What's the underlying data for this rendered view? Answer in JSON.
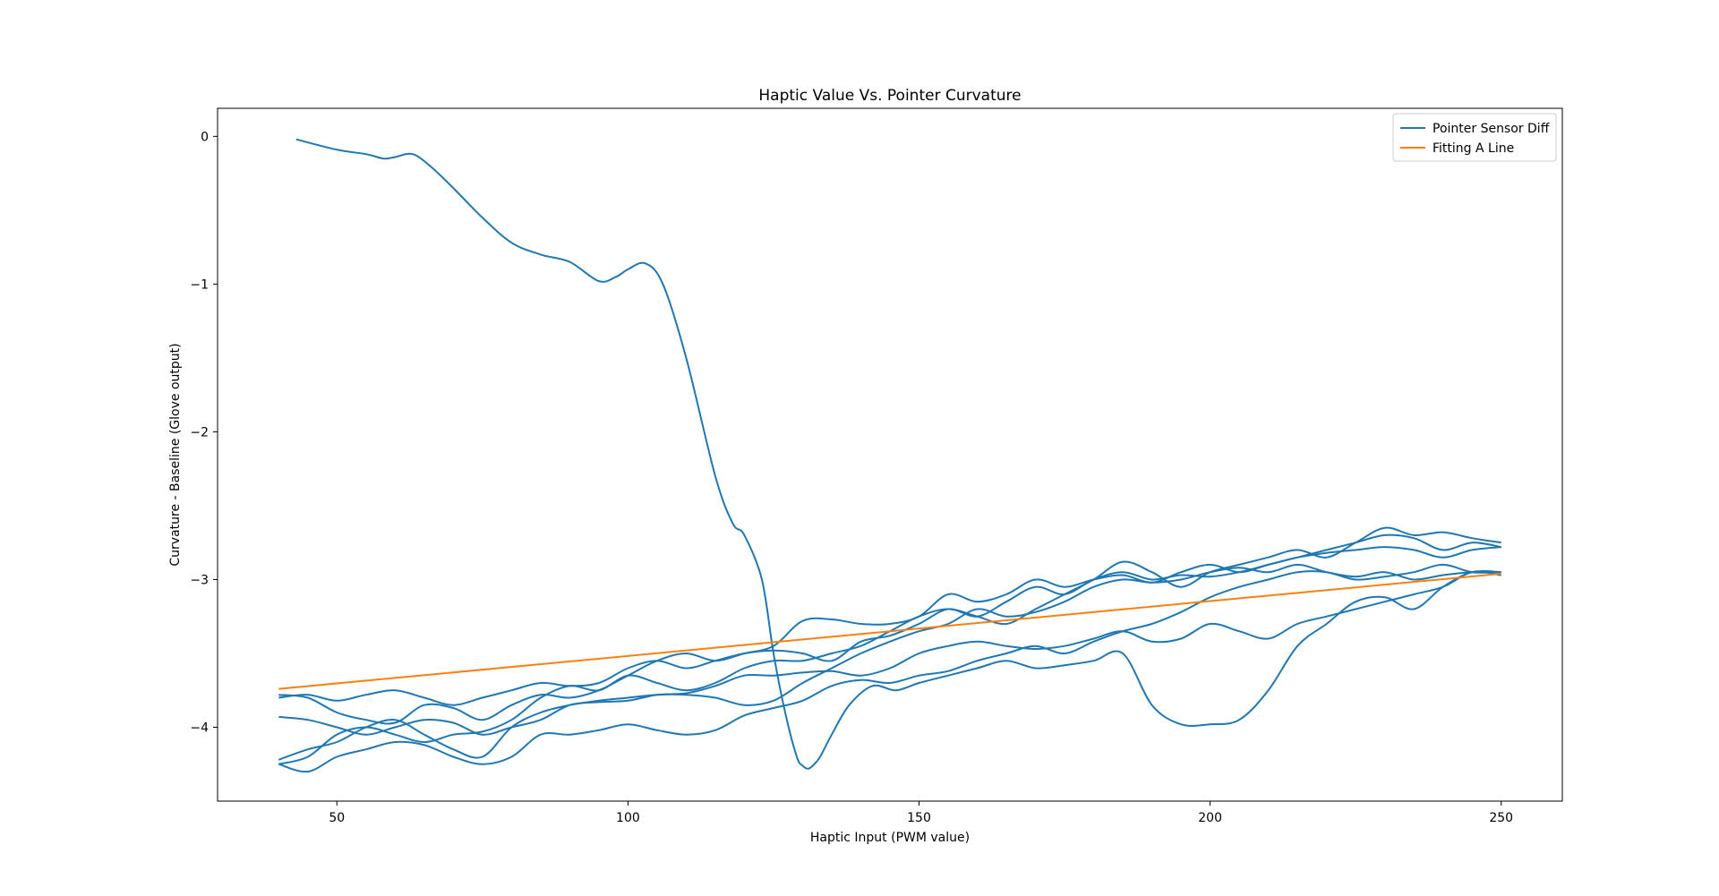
{
  "chart_data": {
    "type": "line",
    "title": "Haptic Value Vs. Pointer Curvature",
    "xlabel": "Haptic Input (PWM value)",
    "ylabel": "Curvature - Baseline (Glove output)",
    "xlim": [
      29.5,
      260.5
    ],
    "ylim": [
      -4.5,
      0.19
    ],
    "xticks": [
      50,
      100,
      150,
      200,
      250
    ],
    "xtick_labels": [
      "50",
      "100",
      "150",
      "200",
      "250"
    ],
    "yticks": [
      0,
      -1,
      -2,
      -3,
      -4
    ],
    "ytick_labels": [
      "0",
      "−1",
      "−2",
      "−3",
      "−4"
    ],
    "grid": false,
    "legend_position": "top-right",
    "legend": [
      {
        "label": "Pointer Sensor Diff",
        "color": "#1f77b4"
      },
      {
        "label": "Fitting A Line",
        "color": "#ff7f0e"
      }
    ],
    "series": [
      {
        "group": 0,
        "color": "#1f77b4",
        "x": [
          43,
          50,
          55,
          58,
          60,
          63,
          66,
          70,
          75,
          80,
          85,
          90,
          95,
          98,
          100,
          103,
          106,
          110,
          115,
          118,
          120,
          123,
          125,
          127,
          129,
          130,
          131,
          132,
          133,
          135,
          138,
          142,
          146,
          150,
          155,
          160,
          165,
          170,
          175,
          180,
          185,
          190,
          195,
          200,
          205,
          210,
          215,
          220,
          225,
          230,
          235,
          240,
          245,
          250
        ],
        "y": [
          -0.02,
          -0.09,
          -0.12,
          -0.15,
          -0.14,
          -0.12,
          -0.2,
          -0.35,
          -0.55,
          -0.72,
          -0.8,
          -0.85,
          -0.98,
          -0.95,
          -0.9,
          -0.86,
          -1.0,
          -1.5,
          -2.3,
          -2.62,
          -2.7,
          -3.0,
          -3.5,
          -3.9,
          -4.2,
          -4.26,
          -4.28,
          -4.25,
          -4.2,
          -4.05,
          -3.85,
          -3.72,
          -3.75,
          -3.7,
          -3.65,
          -3.6,
          -3.55,
          -3.6,
          -3.58,
          -3.55,
          -3.5,
          -3.85,
          -3.98,
          -3.98,
          -3.95,
          -3.75,
          -3.45,
          -3.3,
          -3.15,
          -3.12,
          -3.2,
          -3.05,
          -2.95,
          -2.95
        ]
      },
      {
        "group": 0,
        "color": "#1f77b4",
        "x": [
          40,
          45,
          50,
          55,
          60,
          65,
          70,
          75,
          80,
          85,
          90,
          95,
          100,
          105,
          110,
          115,
          120,
          125,
          130,
          135,
          140,
          145,
          150,
          155,
          160,
          165,
          170,
          175,
          180,
          185,
          190,
          195,
          200,
          205,
          210,
          215,
          220,
          225,
          230,
          235,
          240,
          245,
          250
        ],
        "y": [
          -3.78,
          -3.8,
          -3.9,
          -3.95,
          -3.97,
          -3.85,
          -3.87,
          -3.95,
          -3.85,
          -3.78,
          -3.8,
          -3.75,
          -3.65,
          -3.55,
          -3.5,
          -3.55,
          -3.5,
          -3.45,
          -3.28,
          -3.27,
          -3.3,
          -3.3,
          -3.25,
          -3.1,
          -3.15,
          -3.1,
          -3.0,
          -3.05,
          -3.0,
          -2.97,
          -3.02,
          -2.95,
          -2.9,
          -2.95,
          -2.9,
          -2.85,
          -2.8,
          -2.75,
          -2.7,
          -2.72,
          -2.8,
          -2.75,
          -2.78
        ]
      },
      {
        "group": 0,
        "color": "#1f77b4",
        "x": [
          40,
          45,
          50,
          55,
          60,
          65,
          70,
          75,
          80,
          85,
          90,
          95,
          100,
          105,
          110,
          115,
          120,
          125,
          130,
          135,
          140,
          145,
          150,
          155,
          160,
          165,
          170,
          175,
          180,
          185,
          190,
          195,
          200,
          205,
          210,
          215,
          220,
          225,
          230,
          235,
          240,
          245,
          250
        ],
        "y": [
          -3.8,
          -3.78,
          -3.82,
          -3.78,
          -3.75,
          -3.8,
          -3.85,
          -3.8,
          -3.75,
          -3.7,
          -3.72,
          -3.7,
          -3.6,
          -3.55,
          -3.6,
          -3.55,
          -3.5,
          -3.48,
          -3.5,
          -3.55,
          -3.42,
          -3.38,
          -3.3,
          -3.2,
          -3.25,
          -3.15,
          -3.05,
          -3.1,
          -3.0,
          -2.95,
          -3.0,
          -2.97,
          -2.98,
          -2.95,
          -2.9,
          -2.85,
          -2.82,
          -2.8,
          -2.78,
          -2.8,
          -2.85,
          -2.8,
          -2.78
        ]
      },
      {
        "group": 0,
        "color": "#1f77b4",
        "x": [
          40,
          45,
          50,
          55,
          60,
          65,
          70,
          75,
          80,
          85,
          90,
          95,
          100,
          105,
          110,
          115,
          120,
          125,
          130,
          135,
          140,
          145,
          150,
          155,
          160,
          165,
          170,
          175,
          180,
          185,
          190,
          195,
          200,
          205,
          210,
          215,
          220,
          225,
          230,
          235,
          240,
          245,
          250
        ],
        "y": [
          -4.25,
          -4.2,
          -4.05,
          -4.0,
          -4.05,
          -4.1,
          -4.05,
          -4.03,
          -3.95,
          -3.8,
          -3.72,
          -3.75,
          -3.65,
          -3.7,
          -3.75,
          -3.7,
          -3.6,
          -3.55,
          -3.55,
          -3.5,
          -3.45,
          -3.35,
          -3.25,
          -3.2,
          -3.25,
          -3.3,
          -3.2,
          -3.1,
          -3.0,
          -2.88,
          -2.95,
          -3.05,
          -2.95,
          -2.9,
          -2.85,
          -2.8,
          -2.85,
          -2.75,
          -2.65,
          -2.7,
          -2.68,
          -2.72,
          -2.75
        ]
      },
      {
        "group": 0,
        "color": "#1f77b4",
        "x": [
          40,
          45,
          50,
          55,
          60,
          65,
          70,
          75,
          80,
          85,
          90,
          95,
          100,
          105,
          110,
          115,
          120,
          125,
          130,
          135,
          140,
          145,
          150,
          155,
          160,
          165,
          170,
          175,
          180,
          185,
          190,
          195,
          200,
          205,
          210,
          215,
          220,
          225,
          230,
          235,
          240,
          245,
          250
        ],
        "y": [
          -4.22,
          -4.15,
          -4.1,
          -4.0,
          -3.95,
          -4.05,
          -4.15,
          -4.2,
          -4.0,
          -3.9,
          -3.85,
          -3.82,
          -3.8,
          -3.78,
          -3.78,
          -3.8,
          -3.85,
          -3.82,
          -3.7,
          -3.6,
          -3.5,
          -3.42,
          -3.35,
          -3.3,
          -3.2,
          -3.25,
          -3.22,
          -3.15,
          -3.05,
          -3.0,
          -3.02,
          -3.0,
          -2.95,
          -2.92,
          -2.95,
          -2.9,
          -2.95,
          -2.98,
          -2.95,
          -3.0,
          -2.97,
          -2.95,
          -2.95
        ]
      },
      {
        "group": 0,
        "color": "#1f77b4",
        "x": [
          40,
          45,
          50,
          55,
          60,
          65,
          70,
          75,
          80,
          85,
          90,
          95,
          100,
          105,
          110,
          115,
          120,
          125,
          130,
          135,
          140,
          145,
          150,
          155,
          160,
          165,
          170,
          175,
          180,
          185,
          190,
          195,
          200,
          205,
          210,
          215,
          220,
          225,
          230,
          235,
          240,
          245,
          250
        ],
        "y": [
          -4.25,
          -4.3,
          -4.2,
          -4.15,
          -4.1,
          -4.12,
          -4.2,
          -4.25,
          -4.2,
          -4.05,
          -4.05,
          -4.02,
          -3.98,
          -4.02,
          -4.05,
          -4.02,
          -3.92,
          -3.87,
          -3.82,
          -3.72,
          -3.68,
          -3.7,
          -3.65,
          -3.62,
          -3.55,
          -3.5,
          -3.45,
          -3.5,
          -3.42,
          -3.35,
          -3.3,
          -3.22,
          -3.12,
          -3.05,
          -3.0,
          -2.95,
          -2.95,
          -3.0,
          -2.98,
          -2.95,
          -2.9,
          -2.95,
          -2.95
        ]
      },
      {
        "group": 0,
        "color": "#1f77b4",
        "x": [
          40,
          45,
          50,
          55,
          60,
          65,
          70,
          75,
          80,
          85,
          90,
          95,
          100,
          105,
          110,
          115,
          120,
          125,
          130,
          135,
          140,
          145,
          150,
          155,
          160,
          165,
          170,
          175,
          180,
          185,
          190,
          195,
          200,
          205,
          210,
          215,
          220,
          225,
          230,
          235,
          240,
          245,
          250
        ],
        "y": [
          -3.93,
          -3.95,
          -4.0,
          -4.05,
          -4.0,
          -3.95,
          -3.97,
          -4.05,
          -4.0,
          -3.95,
          -3.85,
          -3.83,
          -3.82,
          -3.78,
          -3.77,
          -3.72,
          -3.65,
          -3.65,
          -3.63,
          -3.62,
          -3.65,
          -3.6,
          -3.5,
          -3.45,
          -3.42,
          -3.45,
          -3.47,
          -3.45,
          -3.4,
          -3.35,
          -3.42,
          -3.4,
          -3.3,
          -3.35,
          -3.4,
          -3.3,
          -3.25,
          -3.2,
          -3.15,
          -3.1,
          -3.05,
          -2.95,
          -2.97
        ]
      },
      {
        "group": 1,
        "color": "#ff7f0e",
        "x": [
          40,
          250
        ],
        "y": [
          -3.74,
          -2.96
        ]
      }
    ]
  }
}
